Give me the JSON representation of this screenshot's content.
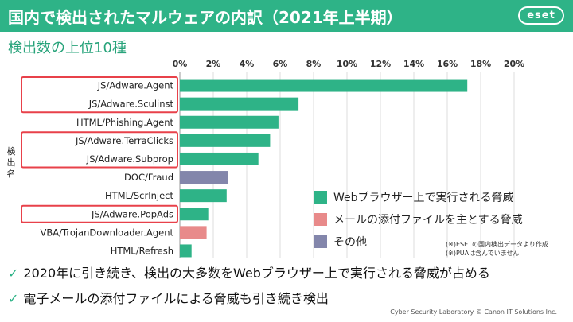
{
  "header": {
    "title": "国内で検出されたマルウェアの内訳（2021年上半期）",
    "logo": "eset"
  },
  "subtitle": "検出数の上位10種",
  "chart_data": {
    "type": "bar",
    "orientation": "horizontal",
    "ylabel": "検出名",
    "xlim": [
      0,
      20
    ],
    "x_ticks": [
      "0%",
      "2%",
      "4%",
      "6%",
      "8%",
      "10%",
      "12%",
      "14%",
      "16%",
      "18%",
      "20%"
    ],
    "categories": [
      "JS/Adware.Agent",
      "JS/Adware.Sculinst",
      "HTML/Phishing.Agent",
      "JS/Adware.TerraClicks",
      "JS/Adware.Subprop",
      "DOC/Fraud",
      "HTML/ScrInject",
      "JS/Adware.PopAds",
      "VBA/TrojanDownloader.Agent",
      "HTML/Refresh"
    ],
    "values": [
      17.2,
      7.1,
      5.9,
      5.4,
      4.7,
      2.9,
      2.8,
      1.7,
      1.6,
      0.7
    ],
    "groups": [
      "web",
      "web",
      "web",
      "web",
      "web",
      "other",
      "web",
      "web",
      "email",
      "web"
    ],
    "highlighted": [
      true,
      true,
      false,
      true,
      true,
      false,
      false,
      true,
      false,
      false
    ],
    "grid": "vertical",
    "legend_position": "right"
  },
  "legend": [
    {
      "key": "web",
      "label": "Webブラウザー上で実行される脅威",
      "color": "#2eb387"
    },
    {
      "key": "email",
      "label": "メールの添付ファイルを主とする脅威",
      "color": "#e88a8a"
    },
    {
      "key": "other",
      "label": "その他",
      "color": "#8386ab"
    }
  ],
  "highlight_color": "#e8414a",
  "notes": [
    "(※)ESETの国内検出データより作成",
    "(※)PUAは含んでいません"
  ],
  "findings": [
    "2020年に引き続き、検出の大多数をWebブラウザー上で実行される脅威が占める",
    "電子メールの添付ファイルによる脅威も引き続き検出"
  ],
  "check_mark": "✓",
  "footer": "Cyber Security Laboratory © Canon IT Solutions Inc."
}
